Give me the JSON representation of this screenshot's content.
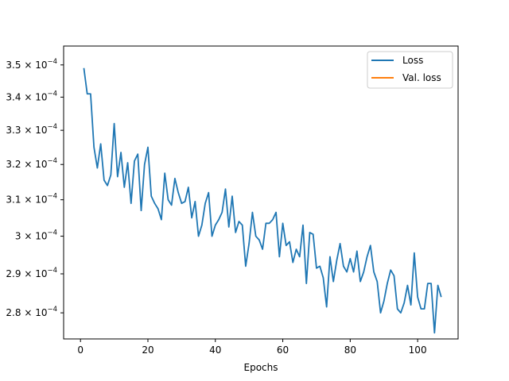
{
  "chart_data": {
    "type": "line",
    "xlabel": "Epochs",
    "ylabel": "",
    "title": "",
    "y_scale": "log",
    "xlim": [
      -5,
      112
    ],
    "ylim": [
      0.0002735,
      0.000356
    ],
    "xticks": [
      0,
      20,
      40,
      60,
      80,
      100
    ],
    "xtick_labels": [
      "0",
      "20",
      "40",
      "60",
      "80",
      "100"
    ],
    "yticks": [
      0.00028,
      0.00029,
      0.0003,
      0.00031,
      0.00032,
      0.00033,
      0.00034,
      0.00035
    ],
    "ytick_labels": [
      {
        "mant": "2.8",
        "exp": "−4"
      },
      {
        "mant": "2.9",
        "exp": "−4"
      },
      {
        "mant": "3",
        "exp": "−4"
      },
      {
        "mant": "3.1",
        "exp": "−4"
      },
      {
        "mant": "3.2",
        "exp": "−4"
      },
      {
        "mant": "3.3",
        "exp": "−4"
      },
      {
        "mant": "3.4",
        "exp": "−4"
      },
      {
        "mant": "3.5",
        "exp": "−4"
      }
    ],
    "legend_position": "top-right",
    "series": [
      {
        "name": "Loss",
        "color": "#1f77b4",
        "x": [
          1,
          2,
          3,
          4,
          5,
          6,
          7,
          8,
          9,
          10,
          11,
          12,
          13,
          14,
          15,
          16,
          17,
          18,
          19,
          20,
          21,
          22,
          23,
          24,
          25,
          26,
          27,
          28,
          29,
          30,
          31,
          32,
          33,
          34,
          35,
          36,
          37,
          38,
          39,
          40,
          41,
          42,
          43,
          44,
          45,
          46,
          47,
          48,
          49,
          50,
          51,
          52,
          53,
          54,
          55,
          56,
          57,
          58,
          59,
          60,
          61,
          62,
          63,
          64,
          65,
          66,
          67,
          68,
          69,
          70,
          71,
          72,
          73,
          74,
          75,
          76,
          77,
          78,
          79,
          80,
          81,
          82,
          83,
          84,
          85,
          86,
          87,
          88,
          89,
          90,
          91,
          92,
          93,
          94,
          95,
          96,
          97,
          98,
          99,
          100,
          101,
          102,
          103,
          104,
          105,
          106,
          107
        ],
        "values": [
          0.000349,
          0.000341,
          0.000341,
          0.000325,
          0.000319,
          0.000326,
          0.0003155,
          0.000314,
          0.000317,
          0.000332,
          0.0003165,
          0.0003235,
          0.0003135,
          0.0003205,
          0.000309,
          0.000321,
          0.000323,
          0.000307,
          0.00032,
          0.000325,
          0.000311,
          0.000309,
          0.0003075,
          0.0003045,
          0.0003175,
          0.00031,
          0.0003085,
          0.000316,
          0.000312,
          0.000309,
          0.0003095,
          0.0003135,
          0.000305,
          0.0003095,
          0.0003,
          0.000303,
          0.000309,
          0.000312,
          0.0003,
          0.000303,
          0.0003045,
          0.0003065,
          0.000313,
          0.0003025,
          0.000311,
          0.000301,
          0.000304,
          0.000303,
          0.000292,
          0.000298,
          0.0003065,
          0.0003,
          0.000299,
          0.0002965,
          0.0003035,
          0.0003035,
          0.0003045,
          0.0003065,
          0.0002945,
          0.0003035,
          0.0002975,
          0.0002985,
          0.000293,
          0.0002965,
          0.0002945,
          0.000303,
          0.0002875,
          0.000301,
          0.0003005,
          0.0002915,
          0.000292,
          0.000289,
          0.0002815,
          0.0002945,
          0.000288,
          0.0002935,
          0.000298,
          0.000292,
          0.0002905,
          0.000294,
          0.0002905,
          0.000296,
          0.000288,
          0.0002905,
          0.0002945,
          0.0002975,
          0.0002905,
          0.000288,
          0.00028,
          0.000283,
          0.0002875,
          0.000291,
          0.0002895,
          0.000281,
          0.00028,
          0.0002825,
          0.000287,
          0.000282,
          0.0002955,
          0.000284,
          0.000281,
          0.000281,
          0.0002875,
          0.0002875,
          0.000275,
          0.000287,
          0.000284
        ]
      },
      {
        "name": "Val. loss",
        "color": "#ff7f0e",
        "x": [],
        "values": []
      }
    ]
  }
}
